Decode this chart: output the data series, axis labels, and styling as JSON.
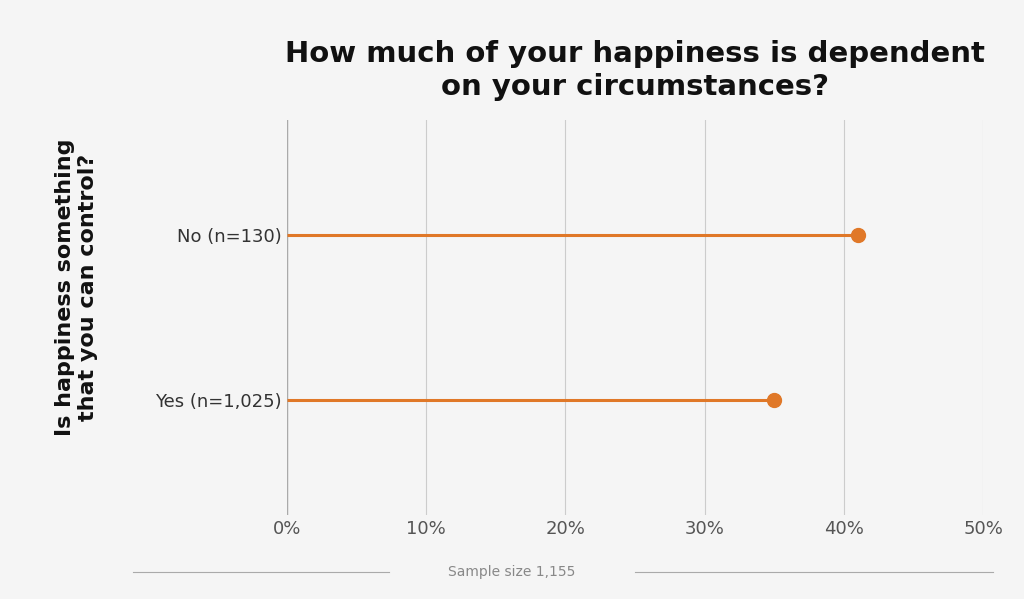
{
  "title": "How much of your happiness is dependent\non your circumstances?",
  "ylabel": "Is happiness something\nthat you can control?",
  "xlabel": "Sample size 1,155",
  "categories": [
    "Yes (n=1,025)",
    "No (n=130)"
  ],
  "values": [
    0.35,
    0.41
  ],
  "line_color": "#E07828",
  "dot_color": "#E07828",
  "xlim": [
    0,
    0.5
  ],
  "xticks": [
    0.0,
    0.1,
    0.2,
    0.3,
    0.4,
    0.5
  ],
  "xticklabels": [
    "0%",
    "10%",
    "20%",
    "30%",
    "40%",
    "50%"
  ],
  "background_color": "#F5F5F5",
  "plot_bg_color": "#F5F5F5",
  "title_fontsize": 21,
  "ylabel_fontsize": 16,
  "tick_fontsize": 13,
  "xlabel_fontsize": 10,
  "ytick_fontsize": 13,
  "line_width": 2.2,
  "dot_size": 10,
  "grid_color": "#CCCCCC",
  "border_color_top": "#E8A0A0",
  "border_color_bottom": "#E87070"
}
